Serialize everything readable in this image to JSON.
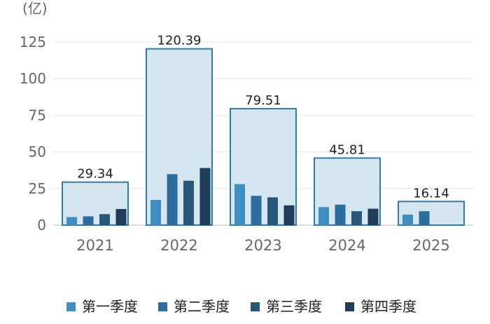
{
  "chart_data": {
    "type": "bar",
    "ylabel": "(亿)",
    "ylim": [
      0,
      125
    ],
    "yticks": [
      0,
      25,
      50,
      75,
      100,
      125
    ],
    "grid": true,
    "legend_position": "bottom",
    "categories": [
      "2021",
      "2022",
      "2023",
      "2024",
      "2025"
    ],
    "annual": {
      "values": [
        29.34,
        120.39,
        79.51,
        45.81,
        16.14
      ],
      "labels": [
        "29.34",
        "120.39",
        "79.51",
        "45.81",
        "16.14"
      ],
      "fill": "#d6e6f0",
      "stroke": "#2f7ca8"
    },
    "series": [
      {
        "name": "第一季度",
        "color": "#3f8fc4",
        "values": [
          5.5,
          17.2,
          28.0,
          12.3,
          7.2
        ]
      },
      {
        "name": "第二季度",
        "color": "#2c6d9e",
        "values": [
          6.0,
          34.8,
          20.0,
          14.0,
          9.5
        ]
      },
      {
        "name": "第三季度",
        "color": "#285878",
        "values": [
          7.5,
          30.3,
          19.0,
          9.5,
          null
        ]
      },
      {
        "name": "第四季度",
        "color": "#1f3d5a",
        "values": [
          11.0,
          39.0,
          13.5,
          11.2,
          null
        ]
      }
    ]
  }
}
